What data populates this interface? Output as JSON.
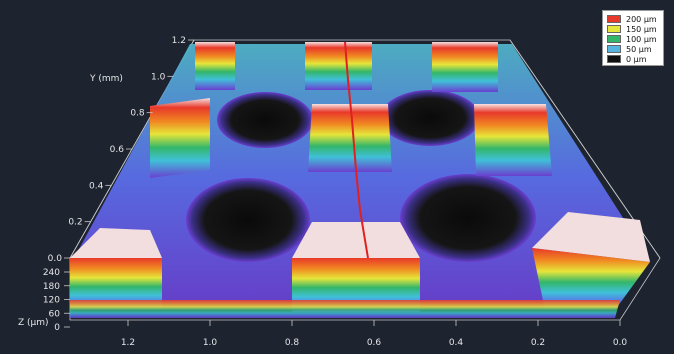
{
  "legend": {
    "entries": [
      {
        "label": "200 μm",
        "color": "#e8392a"
      },
      {
        "label": "150 μm",
        "color": "#e6e63a"
      },
      {
        "label": "100 μm",
        "color": "#33b66a"
      },
      {
        "label": "50 μm",
        "color": "#55b5e0"
      },
      {
        "label": "0 μm",
        "color": "#111111"
      }
    ]
  },
  "axes": {
    "y_title": "Y (mm)",
    "y_ticks": [
      "1.2",
      "1.0",
      "0.8",
      "0.6",
      "0.4",
      "0.2",
      "0.0"
    ],
    "z_title": "Z (μm)",
    "z_ticks": [
      "240",
      "180",
      "120",
      "60",
      "0"
    ],
    "x_ticks": [
      "1.2",
      "1.0",
      "0.8",
      "0.6",
      "0.4",
      "0.2",
      "0.0"
    ]
  },
  "colors": {
    "background": "#1e2330",
    "surface_base": "#6a3fd0",
    "hole": "#0b0b0b",
    "pillar_top": "#f2dede",
    "profile_line": "#e02020"
  }
}
